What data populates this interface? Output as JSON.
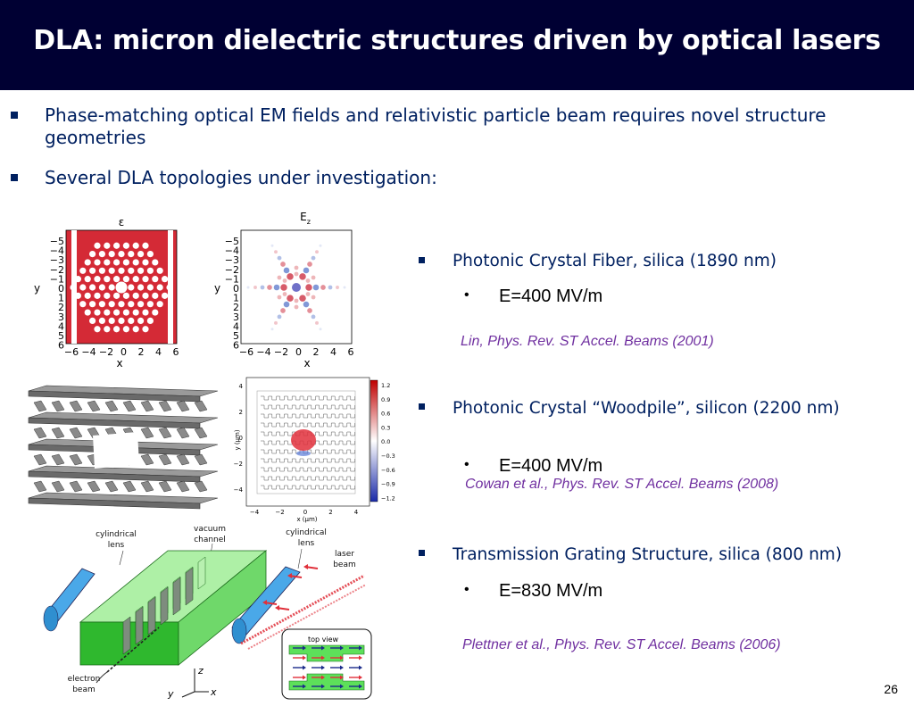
{
  "slide": {
    "title": "DLA: micron dielectric structures driven by optical lasers",
    "bullets": [
      "Phase-matching optical EM fields and relativistic particle beam requires novel structure geometries",
      "Several DLA topologies under investigation:"
    ],
    "topologies": [
      {
        "name": "Photonic Crystal Fiber, silica (1890 nm)",
        "field": "E=400 MV/m",
        "citation": "Lin, Phys. Rev. ST Accel. Beams (2001)"
      },
      {
        "name": "Photonic Crystal “Woodpile”, silicon (2200 nm)",
        "field": "E=400 MV/m",
        "citation": "Cowan et al., Phys. Rev. ST Accel. Beams (2008)"
      },
      {
        "name": "Transmission Grating Structure, silica (800 nm)",
        "field": "E=830 MV/m",
        "citation": "Plettner et al., Phys. Rev. ST Accel. Beams (2006)"
      }
    ],
    "page_number": "26"
  },
  "figures": {
    "fiber_eps": {
      "title": "ε",
      "ylabel": "y",
      "xlabel": "x",
      "yticks": [
        "−5",
        "−4",
        "−3",
        "−2",
        "−1",
        "0",
        "1",
        "2",
        "3",
        "4",
        "5",
        "6"
      ],
      "xticks": [
        "−6",
        "−4",
        "−2",
        "0",
        "2",
        "4",
        "6"
      ]
    },
    "fiber_ez": {
      "title": "E",
      "title_sub": "z",
      "ylabel": "y",
      "xlabel": "x",
      "yticks": [
        "−5",
        "−4",
        "−3",
        "−2",
        "−1",
        "0",
        "1",
        "2",
        "3",
        "4",
        "5",
        "6"
      ],
      "xticks": [
        "−6",
        "−4",
        "−2",
        "0",
        "2",
        "4",
        "6"
      ]
    },
    "woodpile_field": {
      "ylabel": "y (μm)",
      "xlabel": "x (μm)",
      "yticks": [
        "4",
        "2",
        "0",
        "−2",
        "−4"
      ],
      "xticks": [
        "−4",
        "−2",
        "0",
        "2",
        "4"
      ],
      "colorbar": [
        "1.2",
        "0.9",
        "0.6",
        "0.3",
        "0.0",
        "−0.3",
        "−0.6",
        "−0.9",
        "−1.2"
      ]
    },
    "grating": {
      "labels": {
        "cyl_lens_left": [
          "cylindrical",
          "lens"
        ],
        "vacuum_channel": [
          "vacuum",
          "channel"
        ],
        "cyl_lens_right": [
          "cylindrical",
          "lens"
        ],
        "laser_beam": [
          "laser",
          "beam"
        ],
        "electron_beam": [
          "electron",
          "beam"
        ],
        "top_view": "top view",
        "axis_z": "z",
        "axis_y": "y",
        "axis_x": "x"
      }
    },
    "colors": {
      "fiber_red": "#d42a36",
      "glass_green": "#5de05a",
      "lens_blue": "#4aa8e8",
      "laser_red": "#e0303a",
      "title_bg": "#000033",
      "text_navy": "#002060",
      "citation_purple": "#7030a0"
    }
  }
}
